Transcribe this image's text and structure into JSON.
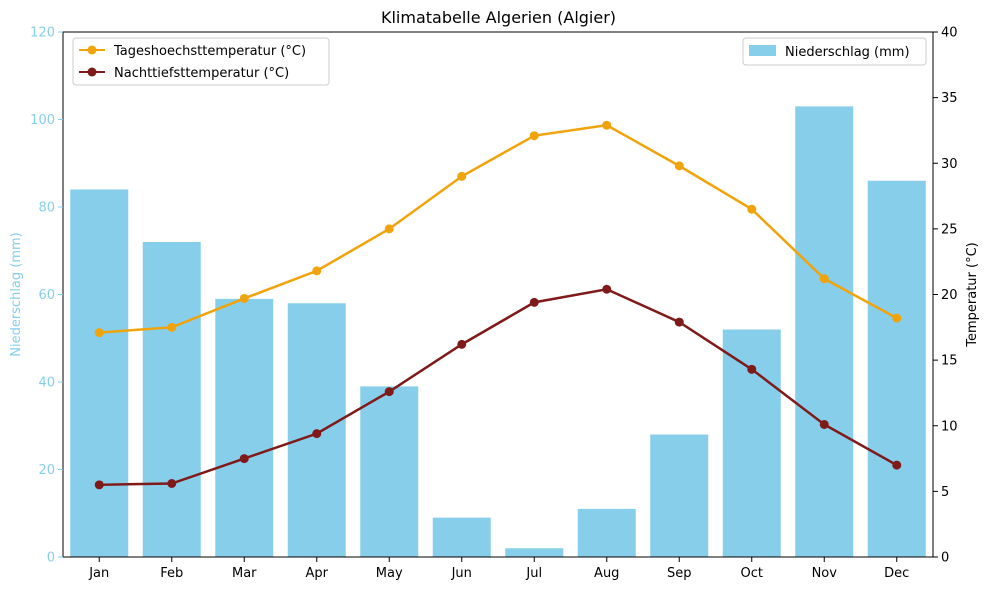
{
  "chart_data": {
    "type": "bar+line",
    "title": "Klimatabelle Algerien (Algier)",
    "categories": [
      "Jan",
      "Feb",
      "Mar",
      "Apr",
      "May",
      "Jun",
      "Jul",
      "Aug",
      "Sep",
      "Oct",
      "Nov",
      "Dec"
    ],
    "left_axis": {
      "label": "Niederschlag (mm)",
      "ylim": [
        0,
        120
      ],
      "ticks": [
        0,
        20,
        40,
        60,
        80,
        100,
        120
      ],
      "color": "#87ceeb"
    },
    "right_axis": {
      "label": "Temperatur (°C)",
      "ylim": [
        0,
        40
      ],
      "ticks": [
        0,
        5,
        10,
        15,
        20,
        25,
        30,
        35,
        40
      ]
    },
    "bars": {
      "name": "Niederschlag (mm)",
      "color": "#87ceeb",
      "values": [
        84,
        72,
        59,
        58,
        39,
        9,
        2,
        11,
        28,
        52,
        103,
        86
      ]
    },
    "lines": [
      {
        "name": "Tageshoechsttemperatur (°C)",
        "color": "#f0a30a",
        "values": [
          17.1,
          17.5,
          19.7,
          21.8,
          25.0,
          29.0,
          32.1,
          32.9,
          29.8,
          26.5,
          21.2,
          18.2
        ]
      },
      {
        "name": "Nachttiefsttemperatur (°C)",
        "color": "#7f1a1a",
        "values": [
          5.5,
          5.6,
          7.5,
          9.4,
          12.6,
          16.2,
          19.4,
          20.4,
          17.9,
          14.3,
          10.1,
          7.0
        ]
      }
    ],
    "legend_left": "top-left",
    "legend_right": "top-right",
    "grid": false
  }
}
